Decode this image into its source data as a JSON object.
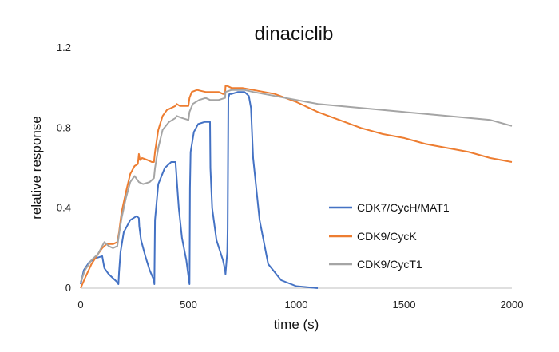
{
  "chart_data": {
    "type": "line",
    "title": "dinaciclib",
    "xlabel": "time (s)",
    "ylabel": "relative response",
    "xlim": [
      0,
      2000
    ],
    "ylim": [
      0,
      1.2
    ],
    "xticks": [
      0,
      500,
      1000,
      1500,
      2000
    ],
    "yticks": [
      0,
      0.4,
      0.8,
      1.2
    ],
    "ytick_labels": [
      "0",
      "0.4",
      "0.8",
      "1.2"
    ],
    "grid": false,
    "legend_position": "right",
    "series": [
      {
        "name": "CDK7/CycH/MAT1",
        "color": "#4472C4",
        "x": [
          0,
          15,
          40,
          70,
          100,
          110,
          130,
          150,
          170,
          175,
          178,
          185,
          200,
          230,
          260,
          270,
          272,
          280,
          300,
          320,
          340,
          342,
          345,
          360,
          390,
          420,
          440,
          445,
          455,
          470,
          490,
          505,
          507,
          510,
          525,
          545,
          575,
          600,
          602,
          610,
          630,
          660,
          670,
          672,
          680,
          682,
          685,
          690,
          700,
          730,
          760,
          780,
          790,
          800,
          830,
          870,
          930,
          1000,
          1050,
          1100
        ],
        "y": [
          0.02,
          0.09,
          0.13,
          0.15,
          0.16,
          0.1,
          0.07,
          0.05,
          0.03,
          0.02,
          0.08,
          0.18,
          0.28,
          0.34,
          0.36,
          0.35,
          0.31,
          0.24,
          0.16,
          0.09,
          0.04,
          0.02,
          0.34,
          0.52,
          0.6,
          0.63,
          0.63,
          0.55,
          0.4,
          0.25,
          0.14,
          0.02,
          0.5,
          0.68,
          0.78,
          0.82,
          0.83,
          0.83,
          0.6,
          0.4,
          0.24,
          0.14,
          0.09,
          0.07,
          0.18,
          0.3,
          0.95,
          0.97,
          0.97,
          0.98,
          0.98,
          0.96,
          0.9,
          0.65,
          0.34,
          0.12,
          0.04,
          0.01,
          0.005,
          0.0
        ]
      },
      {
        "name": "CDK9/CycK",
        "color": "#ED7D31",
        "x": [
          0,
          20,
          50,
          80,
          100,
          120,
          150,
          170,
          178,
          190,
          210,
          230,
          250,
          265,
          270,
          275,
          285,
          310,
          330,
          340,
          345,
          360,
          380,
          400,
          420,
          440,
          445,
          460,
          480,
          500,
          505,
          515,
          540,
          580,
          600,
          640,
          660,
          670,
          672,
          680,
          700,
          750,
          800,
          900,
          1000,
          1100,
          1200,
          1300,
          1400,
          1500,
          1600,
          1700,
          1800,
          1900,
          2000
        ],
        "y": [
          0.0,
          0.05,
          0.12,
          0.17,
          0.2,
          0.22,
          0.22,
          0.23,
          0.28,
          0.38,
          0.48,
          0.57,
          0.61,
          0.62,
          0.67,
          0.64,
          0.65,
          0.64,
          0.63,
          0.63,
          0.68,
          0.79,
          0.86,
          0.89,
          0.9,
          0.91,
          0.92,
          0.91,
          0.91,
          0.91,
          0.95,
          0.98,
          0.99,
          0.98,
          0.98,
          0.98,
          0.97,
          0.97,
          1.01,
          1.01,
          1.0,
          1.0,
          0.99,
          0.97,
          0.93,
          0.88,
          0.84,
          0.8,
          0.77,
          0.75,
          0.72,
          0.7,
          0.68,
          0.65,
          0.63
        ]
      },
      {
        "name": "CDK9/CycT1",
        "color": "#A5A5A5",
        "x": [
          0,
          20,
          50,
          80,
          100,
          110,
          130,
          150,
          170,
          178,
          190,
          210,
          230,
          250,
          270,
          290,
          320,
          340,
          345,
          360,
          380,
          410,
          440,
          445,
          470,
          500,
          505,
          520,
          550,
          580,
          600,
          640,
          670,
          672,
          700,
          760,
          800,
          900,
          1000,
          1100,
          1200,
          1300,
          1400,
          1500,
          1600,
          1700,
          1800,
          1900,
          2000
        ],
        "y": [
          0.03,
          0.09,
          0.14,
          0.17,
          0.21,
          0.23,
          0.21,
          0.2,
          0.21,
          0.27,
          0.35,
          0.45,
          0.53,
          0.56,
          0.53,
          0.52,
          0.53,
          0.55,
          0.6,
          0.7,
          0.79,
          0.83,
          0.85,
          0.86,
          0.85,
          0.84,
          0.88,
          0.92,
          0.94,
          0.95,
          0.94,
          0.94,
          0.95,
          0.98,
          0.99,
          0.99,
          0.98,
          0.96,
          0.94,
          0.92,
          0.91,
          0.9,
          0.89,
          0.88,
          0.87,
          0.86,
          0.85,
          0.84,
          0.81
        ]
      }
    ]
  }
}
